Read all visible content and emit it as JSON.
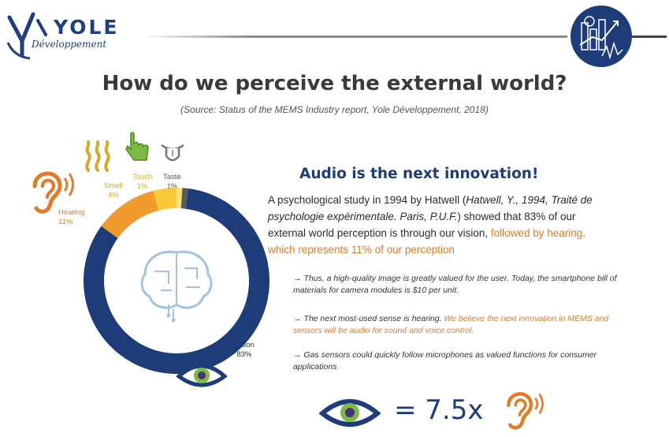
{
  "header": {
    "logo_word": "YOLE",
    "logo_sub": "Développement"
  },
  "slide": {
    "title": "How do we perceive the external world?",
    "source": "(Source: Status of the MEMS Industry report, Yole Développement, 2018)"
  },
  "chart_data": {
    "type": "pie",
    "donut": true,
    "categories": [
      "Vision",
      "Hearing",
      "Smell",
      "Touch",
      "Taste"
    ],
    "values": [
      83,
      11,
      4,
      1,
      1
    ],
    "value_labels": [
      "83%",
      "11%",
      "4%",
      "1%",
      "1%"
    ],
    "colors": [
      "#1f3c7a",
      "#f29a2e",
      "#fbc93a",
      "#fde07a",
      "#5a5a5a"
    ]
  },
  "right": {
    "heading": "Audio is the next innovation!",
    "para_a": "A psychological study in 1994 by Hatwell (",
    "para_italic": "Hatwell, Y., 1994, Traité de psychologie expérimentale. Paris, P.U.F.",
    "para_b": ") showed that 83% of our external world perception is through our vision,",
    "para_orange": "followed by hearing, which represents 11% of our perception",
    "bullets": [
      {
        "text": "→ Thus, a high-quality image is greatly valued for the user. Today, the smartphone bill of materials for camera modules is $10 per unit.",
        "highlight": ""
      },
      {
        "text": "→ The next most-used sense is hearing.",
        "highlight": " We believe the next innovation in MEMS and sensors will be audio for sound and voice control."
      },
      {
        "text": "→ Gas sensors could quickly follow microphones as valued functions for consumer applications",
        "highlight": ""
      }
    ],
    "equation": "= 7.5x"
  },
  "icons": {
    "left_ear": "ear-icon",
    "smell": "smell-waves-icon",
    "touch": "hand-icon",
    "taste": "tongue-icon",
    "eye": "eye-icon",
    "brain": "brain-circuit-icon",
    "badge": "chart-badge-icon"
  }
}
